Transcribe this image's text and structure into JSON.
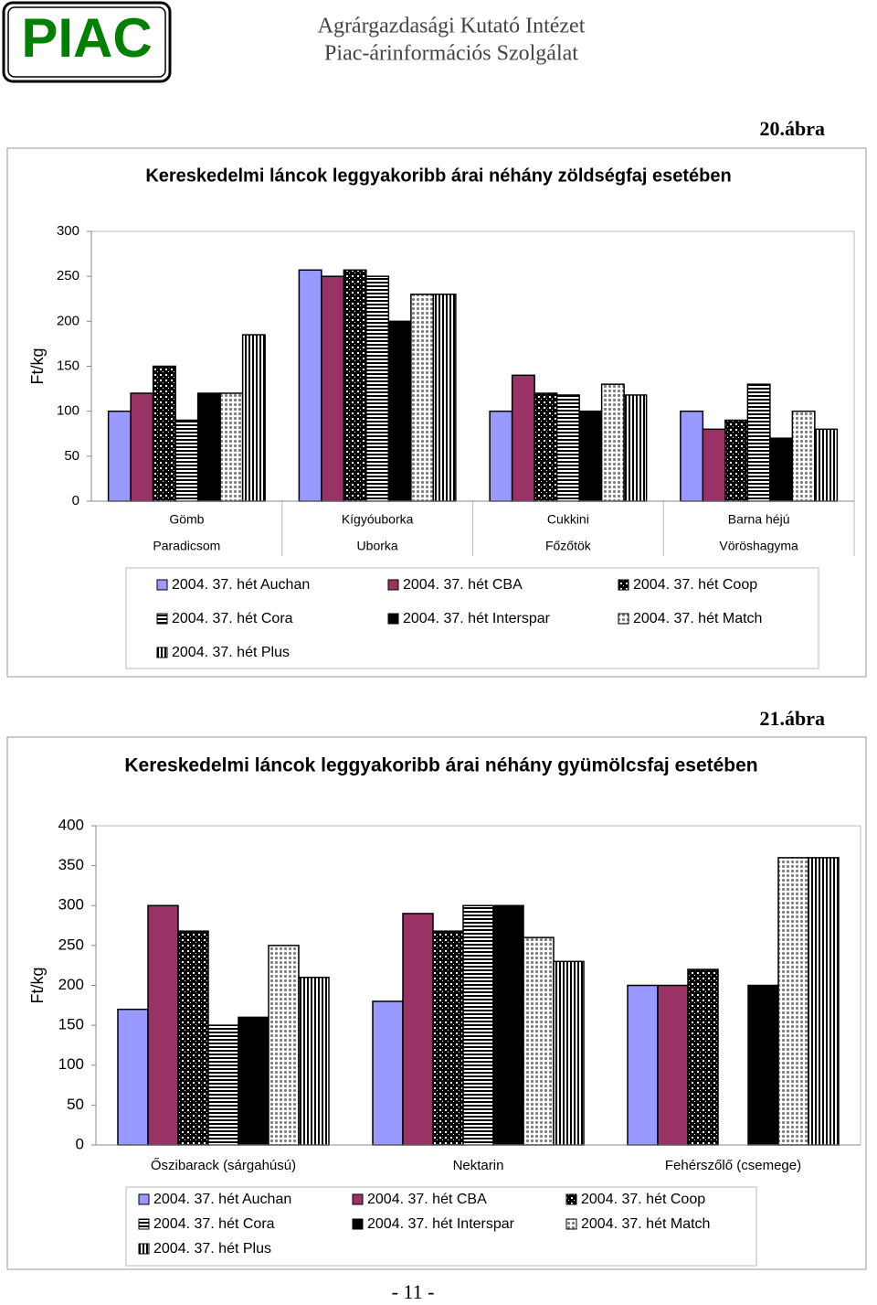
{
  "header": {
    "logo": "PIAC",
    "line1": "Agrárgazdasági Kutató Intézet",
    "line2": "Piac-árinformációs Szolgálat"
  },
  "figure_labels": [
    "20.ábra",
    "21.ábra"
  ],
  "page_number": "- 11 -",
  "chart_data": [
    {
      "type": "bar",
      "title": "Kereskedelmi láncok leggyakoribb árai néhány zöldségfaj esetében",
      "y_label": "Ft/kg",
      "categories": [
        [
          "Gömb",
          "Paradicsom"
        ],
        [
          "Kígyóuborka",
          "Uborka"
        ],
        [
          "Cukkini",
          "Főzőtök"
        ],
        [
          "Barna héjú",
          "Vöröshagyma"
        ]
      ],
      "series": [
        {
          "name": "2004. 37. hét Auchan",
          "color": "#9999ff",
          "values": [
            100,
            257,
            100,
            100
          ]
        },
        {
          "name": "2004. 37. hét CBA",
          "color": "#993366",
          "values": [
            120,
            250,
            140,
            80
          ]
        },
        {
          "name": "2004. 37. hét Coop",
          "color": "#000000",
          "pattern": "checker",
          "values": [
            150,
            257,
            120,
            90
          ]
        },
        {
          "name": "2004. 37. hét Cora",
          "color": "#000000",
          "pattern": "hstripe",
          "values": [
            90,
            250,
            118,
            130
          ]
        },
        {
          "name": "2004. 37. hét Interspar",
          "color": "#000000",
          "values": [
            120,
            200,
            100,
            70
          ]
        },
        {
          "name": "2004. 37. hét Match",
          "color": "#808080",
          "pattern": "dots",
          "values": [
            120,
            230,
            130,
            100
          ]
        },
        {
          "name": "2004. 37. hét Plus",
          "color": "#000000",
          "pattern": "vstripe",
          "values": [
            185,
            230,
            118,
            80
          ]
        }
      ],
      "ylim": [
        0,
        300
      ],
      "yticks": [
        0,
        50,
        100,
        150,
        200,
        250,
        300
      ],
      "grid": false,
      "legend": "bottom"
    },
    {
      "type": "bar",
      "title": "Kereskedelmi láncok leggyakoribb árai néhány gyümölcsfaj esetében",
      "y_label": "Ft/kg",
      "categories": [
        "Őszibarack (sárgahúsú)",
        "Nektarin",
        "Fehérszőlő (csemege)"
      ],
      "series": [
        {
          "name": "2004. 37. hét Auchan",
          "color": "#9999ff",
          "values": [
            170,
            180,
            200
          ]
        },
        {
          "name": "2004. 37. hét CBA",
          "color": "#993366",
          "values": [
            300,
            290,
            200
          ]
        },
        {
          "name": "2004. 37. hét Coop",
          "color": "#000000",
          "pattern": "checker",
          "values": [
            268,
            268,
            220
          ]
        },
        {
          "name": "2004. 37. hét Cora",
          "color": "#000000",
          "pattern": "hstripe",
          "values": [
            150,
            300,
            null
          ]
        },
        {
          "name": "2004. 37. hét Interspar",
          "color": "#000000",
          "values": [
            160,
            300,
            200
          ]
        },
        {
          "name": "2004. 37. hét Match",
          "color": "#808080",
          "pattern": "dots",
          "values": [
            250,
            260,
            360
          ]
        },
        {
          "name": "2004. 37. hét Plus",
          "color": "#000000",
          "pattern": "vstripe",
          "values": [
            210,
            230,
            360
          ]
        }
      ],
      "ylim": [
        0,
        400
      ],
      "yticks": [
        0,
        50,
        100,
        150,
        200,
        250,
        300,
        350,
        400
      ],
      "grid": false,
      "legend": "bottom"
    }
  ]
}
